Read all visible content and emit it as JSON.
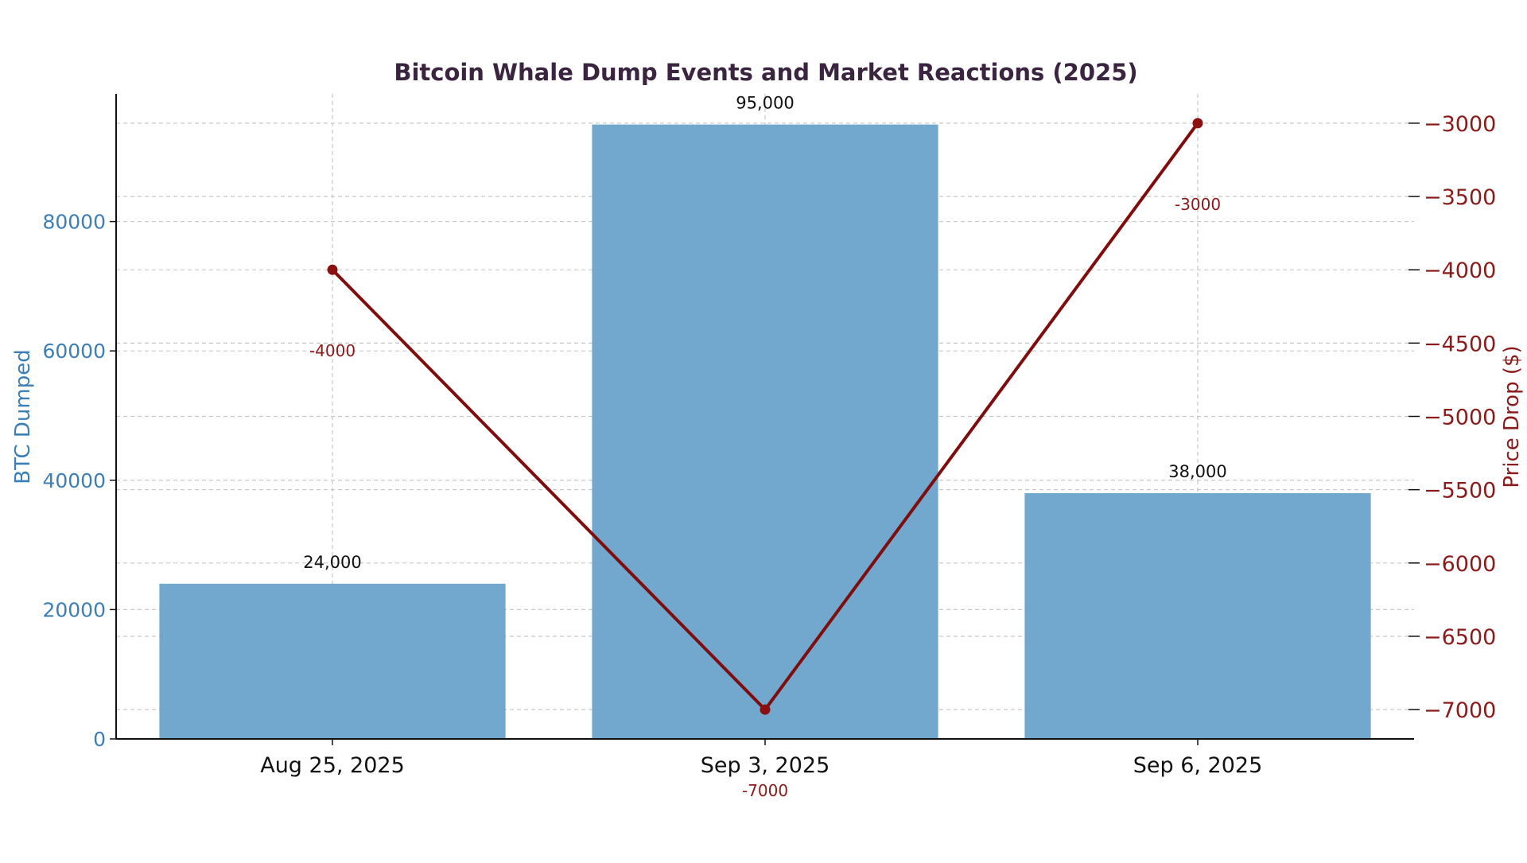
{
  "colors": {
    "bar": "#6fa5cd",
    "line": "#7f0d0d",
    "point": "#8b1010",
    "left_axis": "#3b7fb6",
    "right_axis": "#8b1a1a",
    "grid": "#c8c8c8"
  },
  "chart_data": {
    "type": "bar",
    "title": "Bitcoin Whale Dump Events and Market Reactions (2025)",
    "categories": [
      "Aug 25, 2025",
      "Sep 3, 2025",
      "Sep 6, 2025"
    ],
    "series": [
      {
        "name": "BTC Dumped",
        "type": "bar",
        "axis": "left",
        "values": [
          24000,
          95000,
          38000
        ],
        "value_labels": [
          "24,000",
          "95,000",
          "38,000"
        ]
      },
      {
        "name": "Price Drop ($)",
        "type": "line",
        "axis": "right",
        "values": [
          -4000,
          -7000,
          -3000
        ],
        "value_labels": [
          "-4000",
          "-7000",
          "-3000"
        ]
      }
    ],
    "ylabel": "BTC Dumped",
    "ylim": [
      0,
      99750
    ],
    "yticks": [
      0,
      20000,
      40000,
      60000,
      80000
    ],
    "y2label": "Price Drop ($)",
    "y2lim": [
      -7200,
      -2800
    ],
    "y2ticks": [
      -3000,
      -3500,
      -4000,
      -4500,
      -5000,
      -5500,
      -6000,
      -6500,
      -7000
    ],
    "y2tick_labels": [
      "−3000",
      "−3500",
      "−4000",
      "−4500",
      "−5000",
      "−5500",
      "−6000",
      "−6500",
      "−7000"
    ],
    "grid": true
  }
}
